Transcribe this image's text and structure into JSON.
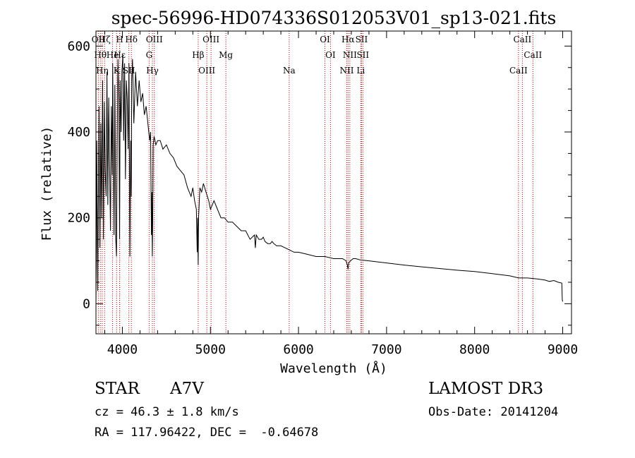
{
  "chart_data": {
    "type": "line",
    "title": "spec-56996-HD074336S012053V01_sp13-021.fits",
    "xlabel": "Wavelength (Å)",
    "ylabel": "Flux (relative)",
    "xlim": [
      3700,
      9100
    ],
    "ylim": [
      -70,
      635
    ],
    "xticks": [
      4000,
      5000,
      6000,
      7000,
      8000,
      9000
    ],
    "yticks": [
      0,
      200,
      400,
      600
    ],
    "series": [
      {
        "name": "spectrum",
        "x": [
          3700,
          3705,
          3710,
          3720,
          3735,
          3745,
          3755,
          3765,
          3775,
          3785,
          3795,
          3805,
          3815,
          3825,
          3835,
          3845,
          3855,
          3865,
          3875,
          3885,
          3890,
          3895,
          3905,
          3915,
          3925,
          3933,
          3940,
          3950,
          3960,
          3968,
          3975,
          3985,
          3995,
          4005,
          4015,
          4025,
          4035,
          4045,
          4055,
          4065,
          4075,
          4085,
          4095,
          4101,
          4105,
          4115,
          4130,
          4150,
          4170,
          4190,
          4210,
          4230,
          4250,
          4270,
          4290,
          4310,
          4320,
          4330,
          4335,
          4340,
          4345,
          4350,
          4360,
          4380,
          4400,
          4430,
          4460,
          4500,
          4540,
          4580,
          4620,
          4660,
          4700,
          4740,
          4780,
          4800,
          4820,
          4840,
          4850,
          4855,
          4861,
          4865,
          4870,
          4880,
          4900,
          4920,
          4950,
          4980,
          5000,
          5040,
          5080,
          5120,
          5160,
          5200,
          5250,
          5300,
          5350,
          5400,
          5450,
          5500,
          5510,
          5520,
          5550,
          5580,
          5600,
          5620,
          5650,
          5680,
          5700,
          5720,
          5750,
          5800,
          5850,
          5900,
          5950,
          6000,
          6100,
          6200,
          6300,
          6400,
          6500,
          6540,
          6555,
          6563,
          6570,
          6590,
          6620,
          6650,
          6700,
          6800,
          7000,
          7200,
          7400,
          7600,
          7800,
          8000,
          8200,
          8400,
          8500,
          8600,
          8700,
          8800,
          8850,
          8900,
          8950,
          8990,
          8995,
          9000
        ],
        "values": [
          0,
          120,
          380,
          30,
          460,
          130,
          420,
          200,
          520,
          150,
          470,
          310,
          250,
          540,
          230,
          480,
          330,
          170,
          460,
          300,
          560,
          430,
          160,
          510,
          150,
          110,
          360,
          570,
          470,
          150,
          520,
          400,
          540,
          580,
          380,
          560,
          290,
          520,
          480,
          360,
          560,
          110,
          380,
          250,
          520,
          570,
          420,
          540,
          460,
          520,
          470,
          490,
          440,
          460,
          420,
          380,
          400,
          160,
          260,
          110,
          200,
          370,
          390,
          370,
          380,
          380,
          360,
          370,
          350,
          340,
          320,
          310,
          300,
          270,
          250,
          270,
          240,
          220,
          120,
          200,
          90,
          200,
          220,
          270,
          260,
          280,
          260,
          240,
          220,
          240,
          220,
          200,
          200,
          190,
          190,
          180,
          170,
          170,
          150,
          160,
          130,
          160,
          150,
          150,
          155,
          145,
          140,
          140,
          145,
          140,
          135,
          135,
          130,
          125,
          120,
          120,
          115,
          110,
          110,
          105,
          105,
          100,
          90,
          80,
          95,
          100,
          105,
          105,
          102,
          100,
          95,
          90,
          86,
          82,
          78,
          75,
          70,
          65,
          60,
          60,
          58,
          55,
          52,
          54,
          50,
          48,
          10,
          5
        ]
      }
    ],
    "lines": [
      {
        "x": 3727,
        "label": "OII"
      },
      {
        "x": 3750,
        "label": "Hθ"
      },
      {
        "x": 3771,
        "label": "Hη"
      },
      {
        "x": 3798,
        "label": "Hζ"
      },
      {
        "x": 3889,
        "label": "He"
      },
      {
        "x": 3934,
        "label": "K"
      },
      {
        "x": 3969,
        "label": "H"
      },
      {
        "x": 3970,
        "label": "Hε"
      },
      {
        "x": 4074,
        "label": "SII"
      },
      {
        "x": 4102,
        "label": "Hδ"
      },
      {
        "x": 4304,
        "label": "G"
      },
      {
        "x": 4341,
        "label": "Hγ"
      },
      {
        "x": 4363,
        "label": "OIII"
      },
      {
        "x": 4861,
        "label": "Hβ"
      },
      {
        "x": 4959,
        "label": "OIII"
      },
      {
        "x": 5007,
        "label": "OIII"
      },
      {
        "x": 5175,
        "label": "Mg"
      },
      {
        "x": 5894,
        "label": "Na"
      },
      {
        "x": 6300,
        "label": "OI"
      },
      {
        "x": 6363,
        "label": "OI"
      },
      {
        "x": 6548,
        "label": "NII"
      },
      {
        "x": 6563,
        "label": "Hα"
      },
      {
        "x": 6583,
        "label": "NII"
      },
      {
        "x": 6707,
        "label": "Li"
      },
      {
        "x": 6716,
        "label": "SII"
      },
      {
        "x": 6731,
        "label": "SII"
      },
      {
        "x": 8498,
        "label": "CaII"
      },
      {
        "x": 8542,
        "label": "CaII"
      },
      {
        "x": 8662,
        "label": "CaII"
      }
    ]
  },
  "info": {
    "object_class": "STAR",
    "subclass": "A7V",
    "survey": "LAMOST DR3",
    "redshift_line": "cz = 46.3 ± 1.8 km/s",
    "obs_date": "Obs-Date: 20141204",
    "coords": "RA = 117.96422, DEC =  -0.64678"
  },
  "colors": {
    "axis": "#000000",
    "spectrum": "#000000",
    "line_markers": "#c00000"
  }
}
